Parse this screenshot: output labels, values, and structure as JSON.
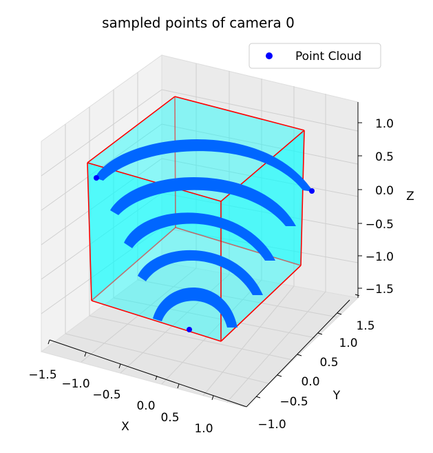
{
  "chart_data": {
    "type": "scatter",
    "projection": "3d",
    "title": "sampled points of camera 0",
    "xlabel": "X",
    "ylabel": "Y",
    "zlabel": "Z",
    "x_ticks": [
      "−1.5",
      "−1.0",
      "−0.5",
      "0.0",
      "0.5",
      "1.0"
    ],
    "y_ticks": [
      "−1.0",
      "−0.5",
      "0.0",
      "0.5",
      "1.0",
      "1.5"
    ],
    "z_ticks": [
      "1.0",
      "0.5",
      "0.0",
      "−0.5",
      "−1.0",
      "−1.5"
    ],
    "xlim": [
      -1.5,
      1.2
    ],
    "ylim": [
      -1.1,
      1.7
    ],
    "zlim": [
      -1.7,
      1.2
    ],
    "grid": true,
    "legend": {
      "position": "top-right",
      "entries": [
        {
          "label": "Point Cloud",
          "color": "#0000ff",
          "marker": "circle"
        }
      ]
    },
    "series": [
      {
        "name": "Point Cloud",
        "kind": "scatter",
        "color": "#0000ff",
        "description_of_shape": "five stacked dome-shaped arcs of sampled points",
        "arcs": [
          {
            "z": 0.0,
            "x_range": [
              -1.0,
              1.1
            ]
          },
          {
            "z": -0.55,
            "x_range": [
              -0.9,
              0.9
            ]
          },
          {
            "z": -1.05,
            "x_range": [
              -0.75,
              0.75
            ]
          },
          {
            "z": -1.4,
            "x_range": [
              -0.6,
              0.6
            ]
          },
          {
            "z": -1.7,
            "x_range": [
              -0.45,
              0.45
            ]
          }
        ]
      },
      {
        "kind": "box",
        "edge_color": "#ff0000",
        "face_color": "#00ffff",
        "x_range": [
          -1.0,
          1.0
        ],
        "y_range": [
          -1.0,
          1.0
        ],
        "z_range": [
          -1.5,
          1.0
        ]
      }
    ]
  }
}
